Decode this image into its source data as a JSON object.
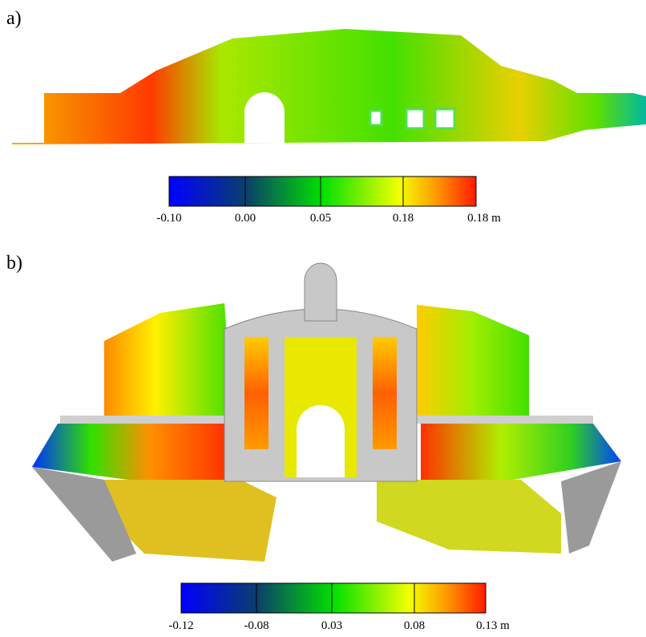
{
  "panels": [
    {
      "label": "a)",
      "colorbar": {
        "ticks": [
          "-0.10",
          "0.00",
          "0.05",
          "0.18",
          "0.18 m"
        ]
      }
    },
    {
      "label": "b)",
      "colorbar": {
        "ticks": [
          "-0.12",
          "-0.08",
          "0.03",
          "0.08",
          "0.13 m"
        ]
      }
    }
  ]
}
